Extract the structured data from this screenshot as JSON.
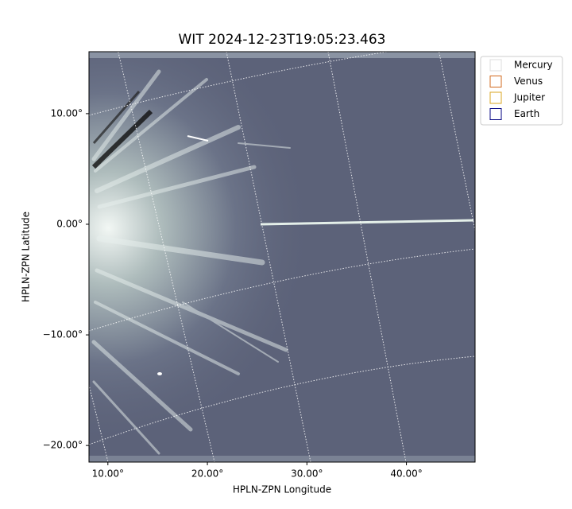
{
  "chart_data": {
    "type": "image",
    "title": "WIT 2024-12-23T19:05:23.463",
    "x_label": "HPLN-ZPN Longitude",
    "y_label": "HPLN-ZPN Latitude",
    "xlim": [
      8.1,
      46.9
    ],
    "ylim": [
      -21.5,
      15.6
    ],
    "xticks": [
      {
        "value": 10,
        "label": "10.00°"
      },
      {
        "value": 20,
        "label": "20.00°"
      },
      {
        "value": 30,
        "label": "30.00°"
      },
      {
        "value": 40,
        "label": "40.00°"
      }
    ],
    "yticks": [
      {
        "value": 10,
        "label": "10.00°"
      },
      {
        "value": 0,
        "label": "0.00°"
      },
      {
        "value": -10,
        "label": "−10.00°"
      },
      {
        "value": -20,
        "label": "−20.00°"
      }
    ],
    "legend_position": "upper right outside",
    "legend": [
      {
        "name": "Mercury",
        "color": "#dddddd"
      },
      {
        "name": "Venus",
        "color": "#d2691e"
      },
      {
        "name": "Jupiter",
        "color": "#daa520"
      },
      {
        "name": "Earth",
        "color": "#000080"
      }
    ]
  }
}
